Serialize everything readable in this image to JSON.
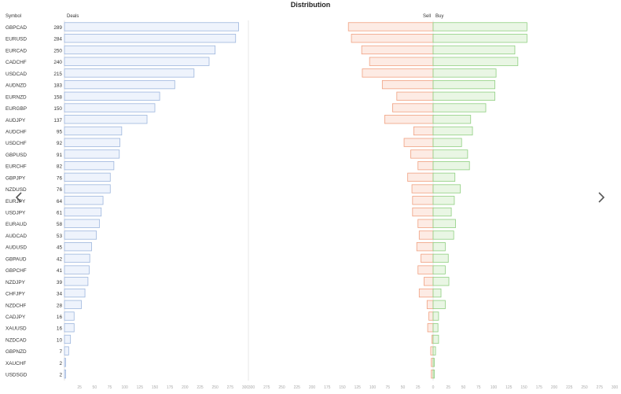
{
  "title": "Distribution",
  "chart_data": [
    {
      "type": "bar",
      "orientation": "horizontal",
      "categories": [
        "GBPCAD",
        "EURUSD",
        "EURCAD",
        "CADCHF",
        "USDCAD",
        "AUDNZD",
        "EURNZD",
        "EURGBP",
        "AUDJPY",
        "AUDCHF",
        "USDCHF",
        "GBPUSD",
        "EURCHF",
        "GBPJPY",
        "NZDUSD",
        "EURJPY",
        "USDJPY",
        "EURAUD",
        "AUDCAD",
        "AUDUSD",
        "GBPAUD",
        "GBPCHF",
        "NZDJPY",
        "CHFJPY",
        "NZDCHF",
        "CADJPY",
        "XAUUSD",
        "NZDCAD",
        "GBPNZD",
        "XAUCHF",
        "USDSGD"
      ],
      "category_header": "Symbol",
      "series": [
        {
          "name": "Deals",
          "values": [
            289,
            284,
            250,
            240,
            215,
            183,
            158,
            150,
            137,
            95,
            92,
            91,
            82,
            76,
            76,
            64,
            61,
            58,
            53,
            45,
            42,
            41,
            39,
            34,
            28,
            16,
            16,
            10,
            7,
            2,
            2
          ]
        }
      ],
      "xlim": [
        0,
        300
      ],
      "x_ticks": [
        "25",
        "50",
        "75",
        "100",
        "125",
        "150",
        "175",
        "200",
        "225",
        "250",
        "275",
        "300"
      ],
      "colors": {
        "fill": "#eef3fc",
        "stroke": "#9db6dd"
      }
    },
    {
      "type": "bar",
      "orientation": "horizontal",
      "diverging": true,
      "categories": [
        "GBPCAD",
        "EURUSD",
        "EURCAD",
        "CADCHF",
        "USDCAD",
        "AUDNZD",
        "EURNZD",
        "EURGBP",
        "AUDJPY",
        "AUDCHF",
        "USDCHF",
        "GBPUSD",
        "EURCHF",
        "GBPJPY",
        "NZDUSD",
        "EURJPY",
        "USDJPY",
        "EURAUD",
        "AUDCAD",
        "AUDUSD",
        "GBPAUD",
        "GBPCHF",
        "NZDJPY",
        "CHFJPY",
        "NZDCHF",
        "CADJPY",
        "XAUUSD",
        "NZDCAD",
        "GBPNZD",
        "XAUCHF",
        "USDSGD"
      ],
      "series": [
        {
          "name": "Sell",
          "values": [
            140,
            135,
            118,
            105,
            117,
            84,
            60,
            67,
            80,
            32,
            48,
            37,
            25,
            42,
            35,
            34,
            34,
            25,
            23,
            27,
            20,
            25,
            15,
            23,
            10,
            7,
            9,
            2,
            4,
            3,
            3
          ]
        },
        {
          "name": "Buy",
          "values": [
            155,
            155,
            135,
            140,
            104,
            102,
            102,
            87,
            62,
            65,
            47,
            57,
            60,
            36,
            45,
            35,
            30,
            37,
            34,
            20,
            25,
            20,
            26,
            13,
            20,
            9,
            8,
            9,
            4,
            2,
            2
          ]
        }
      ],
      "xlim": [
        -300,
        300
      ],
      "x_ticks": [
        "300",
        "275",
        "250",
        "225",
        "200",
        "175",
        "150",
        "125",
        "100",
        "75",
        "50",
        "25",
        "0",
        "25",
        "50",
        "75",
        "100",
        "125",
        "150",
        "175",
        "200",
        "225",
        "250",
        "275",
        "300"
      ],
      "colors": {
        "sell_fill": "#fdebe4",
        "sell_stroke": "#f0a080",
        "buy_fill": "#e9f6e4",
        "buy_stroke": "#8fcf80"
      }
    }
  ],
  "nav": {
    "prev_icon": "chevron-left-icon",
    "next_icon": "chevron-right-icon"
  }
}
